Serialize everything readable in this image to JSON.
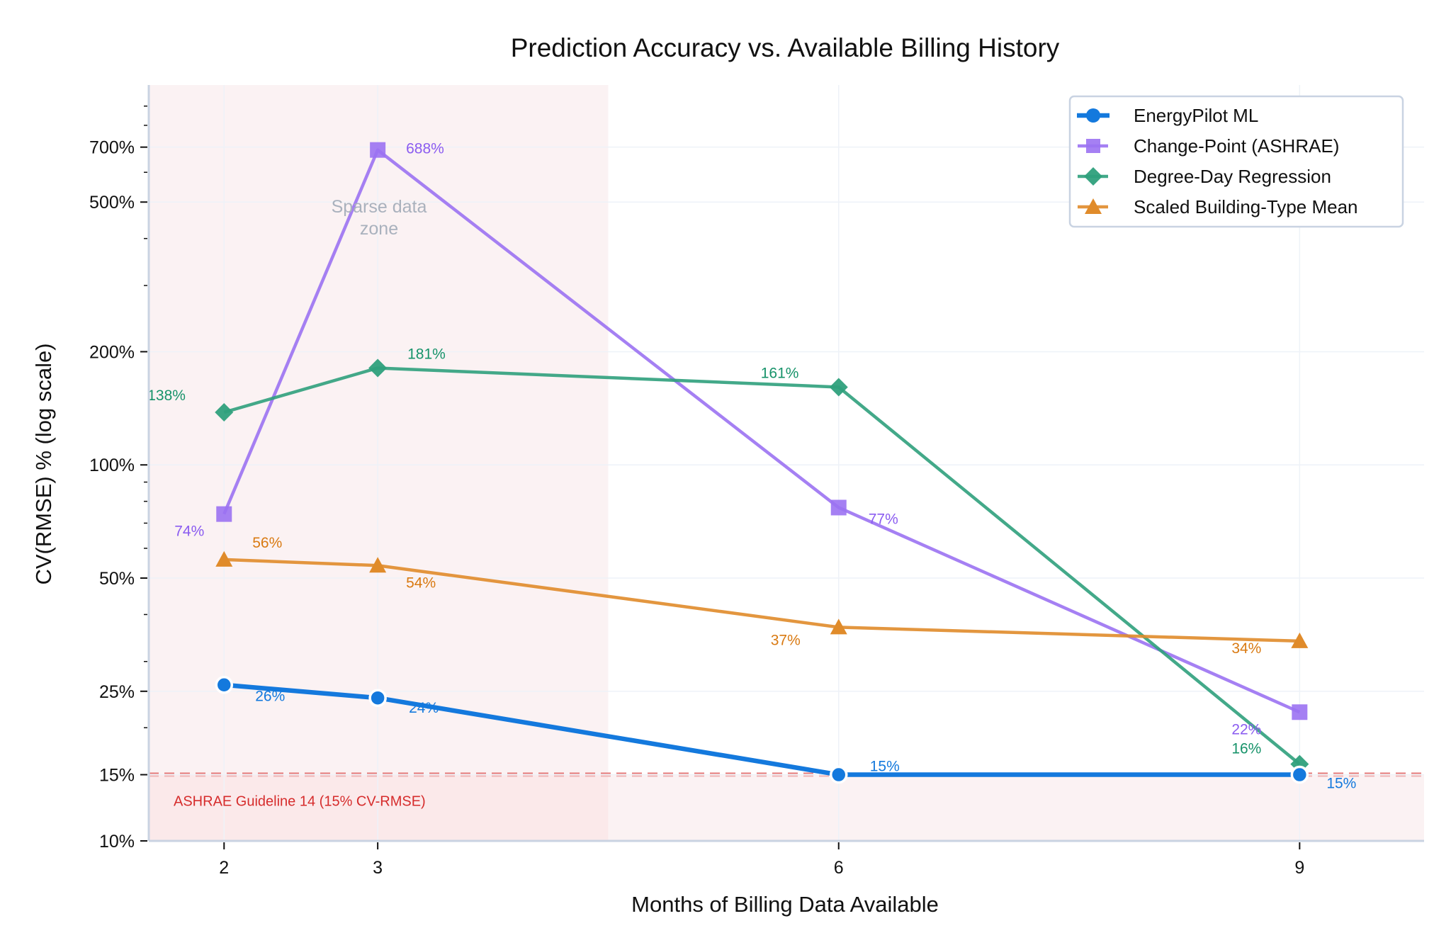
{
  "chart_data": {
    "type": "line",
    "title": "Prediction Accuracy vs. Available Billing History",
    "xlabel": "Months of Billing Data Available",
    "ylabel": "CV(RMSE) %  (log scale)",
    "y_scale": "log",
    "x": [
      2,
      3,
      6,
      9
    ],
    "xticks": [
      2,
      3,
      6,
      9
    ],
    "xlim": [
      1.51,
      9.81
    ],
    "ylim": [
      10,
      1024
    ],
    "yticks": [
      10,
      15,
      25,
      50,
      100,
      200,
      500,
      700
    ],
    "ytick_labels": [
      "10%",
      "15%",
      "25%",
      "50%",
      "100%",
      "200%",
      "500%",
      "700%"
    ],
    "grid": true,
    "legend_position": "upper right",
    "series": [
      {
        "name": "EnergyPilot ML",
        "color": "#1479dd",
        "marker": "circle",
        "linestyle": "solid-thick",
        "values": [
          26,
          24,
          15,
          15
        ],
        "labels": [
          "26%",
          "24%",
          "15%",
          "15%"
        ]
      },
      {
        "name": "Change-Point (ASHRAE)",
        "color": "#9b72f2",
        "marker": "square",
        "linestyle": "solid",
        "values": [
          74,
          688,
          77,
          22
        ],
        "labels": [
          "74%",
          "688%",
          "77%",
          "22%"
        ]
      },
      {
        "name": "Degree-Day Regression",
        "color": "#2fa07c",
        "marker": "diamond",
        "linestyle": "solid",
        "values": [
          138,
          181,
          161,
          16
        ],
        "labels": [
          "138%",
          "181%",
          "161%",
          "16%"
        ]
      },
      {
        "name": "Scaled Building-Type Mean",
        "color": "#e08b2a",
        "marker": "triangle",
        "linestyle": "solid",
        "values": [
          56,
          54,
          37,
          34
        ],
        "labels": [
          "56%",
          "54%",
          "37%",
          "34%"
        ]
      }
    ],
    "annotations": [
      {
        "text": "Sparse data zone",
        "lines": [
          "Sparse data",
          "zone"
        ],
        "region_x": [
          1.51,
          4.5
        ],
        "color": "#a9b1bd"
      },
      {
        "text": "ASHRAE Guideline 14 (15% CV-RMSE)",
        "threshold_y": 15,
        "region_y": [
          10,
          15
        ],
        "color": "#d62c2c"
      }
    ]
  },
  "colors": {
    "sparse_zone_fill": "#fbf2f3",
    "ashrae_zone_fill": "#fbe9ea",
    "threshold_line": "#e57a7a",
    "grid": "#eef2f8",
    "spine": "#c9d3e2",
    "legend_border": "#c9d3e2"
  }
}
